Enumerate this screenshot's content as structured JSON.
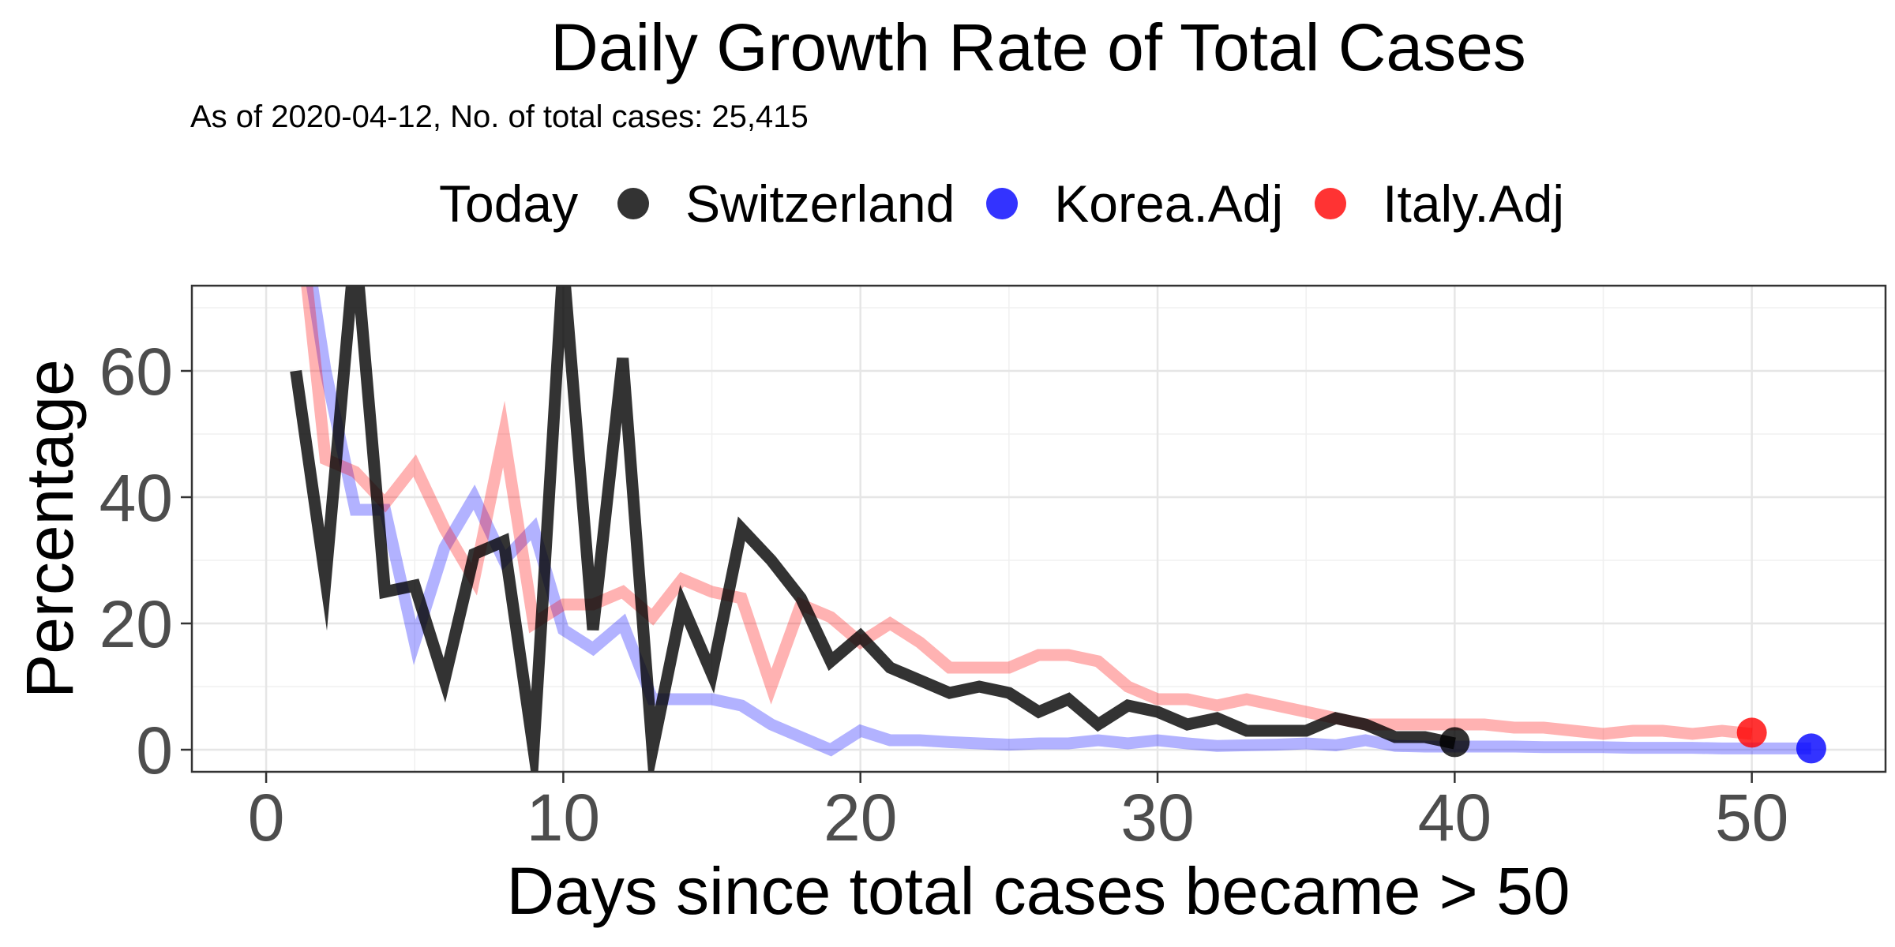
{
  "chart_data": {
    "type": "line",
    "title": "Daily Growth Rate of Total Cases",
    "subtitle": "As of 2020-04-12, No. of total cases: 25,415",
    "xlabel": "Days since total cases became > 50",
    "ylabel": "Percentage",
    "xlim": [
      -2.5,
      54.5
    ],
    "ylim": [
      -3.5,
      73.5
    ],
    "x_ticks": [
      0,
      10,
      20,
      30,
      40,
      50
    ],
    "y_ticks": [
      0,
      20,
      40,
      60
    ],
    "grid": true,
    "legend_title": "Today",
    "legend_position": "top",
    "series": [
      {
        "name": "Switzerland",
        "color": "#000000",
        "opacity": 0.8,
        "x": [
          1,
          2,
          3,
          4,
          5,
          6,
          7,
          8,
          9,
          10,
          11,
          12,
          13,
          14,
          15,
          16,
          17,
          18,
          19,
          20,
          21,
          22,
          23,
          24,
          25,
          26,
          27,
          28,
          29,
          30,
          31,
          32,
          33,
          34,
          35,
          36,
          37,
          38,
          39,
          40
        ],
        "values": [
          60,
          27,
          80,
          25,
          26,
          11,
          31,
          33,
          0,
          77,
          19,
          62,
          0,
          23,
          12,
          35,
          30,
          24,
          14,
          18,
          13,
          11,
          9,
          10,
          9,
          6,
          8,
          4,
          7,
          6,
          4,
          5,
          3,
          3,
          3,
          5,
          4,
          2,
          2,
          1
        ]
      },
      {
        "name": "Korea.Adj",
        "color": "#0000FF",
        "opacity": 0.3,
        "x": [
          1,
          2,
          3,
          4,
          5,
          6,
          7,
          8,
          9,
          10,
          11,
          12,
          13,
          14,
          15,
          16,
          17,
          18,
          19,
          20,
          21,
          22,
          23,
          24,
          25,
          26,
          27,
          28,
          29,
          30,
          31,
          32,
          33,
          34,
          35,
          36,
          37,
          38,
          39,
          40,
          41,
          42,
          43,
          44,
          45,
          46,
          47,
          48,
          49,
          50,
          51,
          52
        ],
        "values": [
          90,
          60,
          38,
          38,
          17,
          32,
          40,
          30,
          35,
          19,
          16,
          20,
          8,
          8,
          8,
          7,
          4,
          2,
          0,
          3,
          1.5,
          1.5,
          1.2,
          1,
          0.8,
          1,
          1,
          1.5,
          1,
          1.5,
          1,
          0.6,
          0.7,
          0.8,
          1,
          0.7,
          1.5,
          0.6,
          0.5,
          0.5,
          0.5,
          0.5,
          0.4,
          0.4,
          0.4,
          0.3,
          0.3,
          0.3,
          0.2,
          0.2,
          0.2,
          0.2
        ]
      },
      {
        "name": "Italy.Adj",
        "color": "#FF0000",
        "opacity": 0.3,
        "x": [
          1,
          2,
          3,
          4,
          5,
          6,
          7,
          8,
          9,
          10,
          11,
          12,
          13,
          14,
          15,
          16,
          17,
          18,
          19,
          20,
          21,
          22,
          23,
          24,
          25,
          26,
          27,
          28,
          29,
          30,
          31,
          32,
          33,
          34,
          35,
          36,
          37,
          38,
          39,
          40,
          41,
          42,
          43,
          44,
          45,
          46,
          47,
          48,
          49,
          50
        ],
        "values": [
          90,
          46,
          44,
          39,
          45,
          35,
          27,
          50,
          20,
          23,
          23,
          25,
          21,
          27,
          25,
          24,
          10,
          23,
          21,
          17,
          20,
          17,
          13,
          13,
          13,
          15,
          15,
          14,
          10,
          8,
          8,
          7,
          8,
          7,
          6,
          5,
          4,
          4,
          4,
          4,
          4,
          3.5,
          3.5,
          3,
          2.5,
          3,
          3,
          2.5,
          3,
          2.5
        ]
      }
    ],
    "today_points": [
      {
        "name": "Switzerland",
        "x": 40,
        "y": 1.2,
        "color": "#000000"
      },
      {
        "name": "Korea.Adj",
        "x": 52,
        "y": 0.2,
        "color": "#0000FF"
      },
      {
        "name": "Italy.Adj",
        "x": 50,
        "y": 2.7,
        "color": "#FF0000"
      }
    ]
  }
}
